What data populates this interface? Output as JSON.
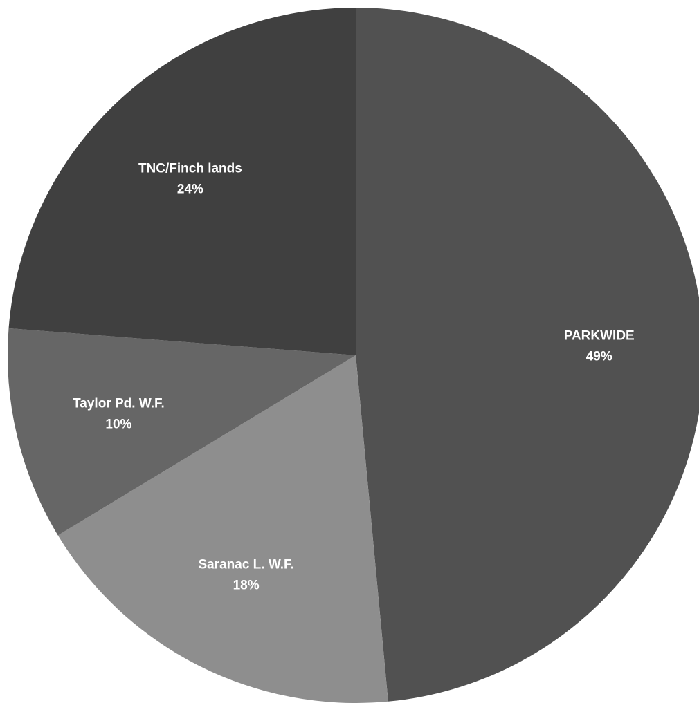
{
  "chart_data": {
    "type": "pie",
    "title": "",
    "start_angle_deg": 0,
    "direction": "clockwise",
    "slices": [
      {
        "label": "PARKWIDE",
        "value": 49,
        "value_label": "49%",
        "color": "#515151"
      },
      {
        "label": "Saranac L. W.F.",
        "value": 18,
        "value_label": "18%",
        "color": "#8e8e8e"
      },
      {
        "label": "Taylor Pd. W.F.",
        "value": 10,
        "value_label": "10%",
        "color": "#666666"
      },
      {
        "label": "TNC/Finch lands",
        "value": 24,
        "value_label": "24%",
        "color": "#404040"
      }
    ],
    "legend": "none"
  }
}
